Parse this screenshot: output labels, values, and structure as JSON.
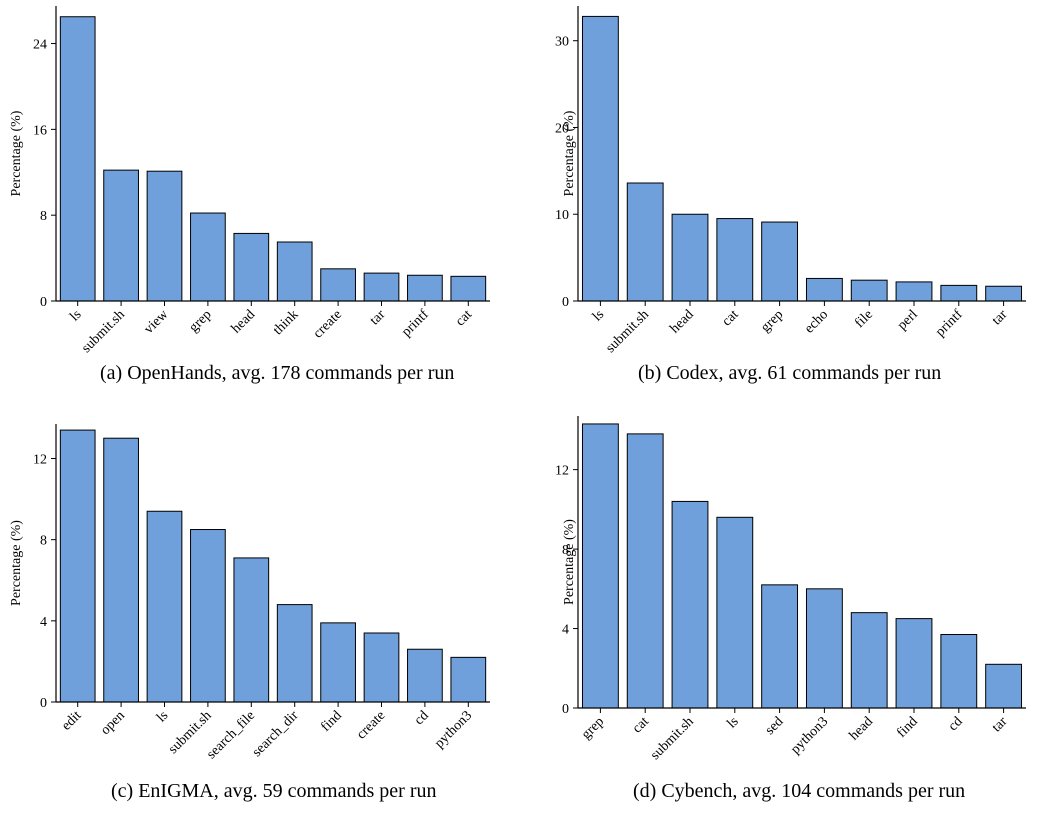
{
  "panels": [
    {
      "label": "(a)",
      "caption": "OpenHands, avg. 178 commands per run",
      "chart_data": {
        "type": "bar",
        "ylabel": "Percentage (%)",
        "xlabel": "",
        "yticks": [
          0,
          8,
          16,
          24
        ],
        "ylim": [
          0,
          27.5
        ],
        "categories": [
          "ls",
          "submit.sh",
          "view",
          "grep",
          "head",
          "think",
          "create",
          "tar",
          "printf",
          "cat"
        ],
        "values": [
          26.5,
          12.2,
          12.1,
          8.2,
          6.3,
          5.5,
          3.0,
          2.6,
          2.4,
          2.3
        ]
      }
    },
    {
      "label": "(b)",
      "caption": "Codex, avg. 61 commands per run",
      "chart_data": {
        "type": "bar",
        "ylabel": "Percentage (%)",
        "xlabel": "",
        "yticks": [
          0,
          10,
          20,
          30
        ],
        "ylim": [
          0,
          34
        ],
        "categories": [
          "ls",
          "submit.sh",
          "head",
          "cat",
          "grep",
          "echo",
          "file",
          "perl",
          "printf",
          "tar"
        ],
        "values": [
          32.8,
          13.6,
          10.0,
          9.5,
          9.1,
          2.6,
          2.4,
          2.2,
          1.8,
          1.7
        ]
      }
    },
    {
      "label": "(c)",
      "caption": "EnIGMA, avg. 59 commands per run",
      "chart_data": {
        "type": "bar",
        "ylabel": "Percentage (%)",
        "xlabel": "",
        "yticks": [
          0,
          4,
          8,
          12
        ],
        "ylim": [
          0,
          13.7
        ],
        "categories": [
          "edit",
          "open",
          "ls",
          "submit.sh",
          "search_file",
          "search_dir",
          "find",
          "create",
          "cd",
          "python3"
        ],
        "values": [
          13.4,
          13.0,
          9.4,
          8.5,
          7.1,
          4.8,
          3.9,
          3.4,
          2.6,
          2.2
        ]
      }
    },
    {
      "label": "(d)",
      "caption": "Cybench, avg. 104 commands per run",
      "chart_data": {
        "type": "bar",
        "ylabel": "Percentage (%)",
        "xlabel": "",
        "yticks": [
          0,
          4,
          8,
          12
        ],
        "ylim": [
          0,
          14.7
        ],
        "categories": [
          "grep",
          "cat",
          "submit.sh",
          "ls",
          "sed",
          "python3",
          "head",
          "find",
          "cd",
          "tar"
        ],
        "values": [
          14.3,
          13.8,
          10.4,
          9.6,
          6.2,
          6.0,
          4.8,
          4.5,
          3.7,
          2.2
        ]
      }
    }
  ],
  "colors": {
    "bar_fill": "#6fa0dc",
    "bar_stroke": "#000000",
    "axis": "#000000"
  }
}
